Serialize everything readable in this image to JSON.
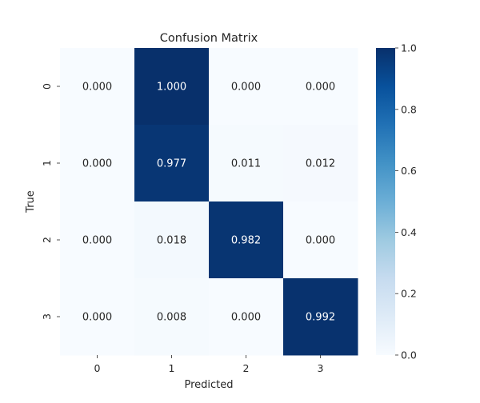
{
  "chart_data": {
    "type": "heatmap",
    "title": "Confusion Matrix",
    "xlabel": "Predicted",
    "ylabel": "True",
    "x_categories": [
      "0",
      "1",
      "2",
      "3"
    ],
    "y_categories": [
      "0",
      "1",
      "2",
      "3"
    ],
    "values": [
      [
        0.0,
        1.0,
        0.0,
        0.0
      ],
      [
        0.0,
        0.977,
        0.011,
        0.012
      ],
      [
        0.0,
        0.018,
        0.982,
        0.0
      ],
      [
        0.0,
        0.008,
        0.0,
        0.992
      ]
    ],
    "value_format": "0.000",
    "colormap": "Blues",
    "colormap_stops": [
      "#f7fbff",
      "#deebf7",
      "#c6dbef",
      "#9ecae1",
      "#6baed6",
      "#4292c6",
      "#2171b5",
      "#08519c",
      "#08306b"
    ],
    "vmin": 0.0,
    "vmax": 1.0,
    "colorbar_ticks": [
      "0.0",
      "0.2",
      "0.4",
      "0.6",
      "0.8",
      "1.0"
    ],
    "light_text_color": "#ffffff",
    "dark_text_color": "#262626"
  }
}
